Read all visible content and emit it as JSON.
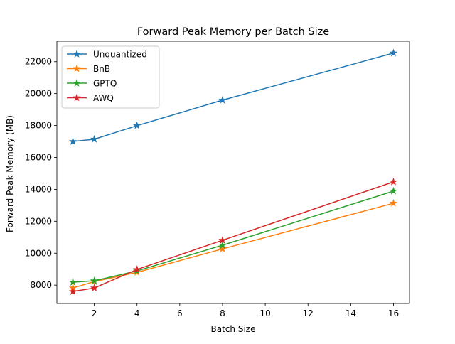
{
  "chart_data": {
    "type": "line",
    "title": "Forward Peak Memory per Batch Size",
    "xlabel": "Batch Size",
    "ylabel": "Forward Peak Memory (MB)",
    "x": [
      1,
      2,
      4,
      8,
      16
    ],
    "xlim": [
      0.25,
      16.75
    ],
    "ylim": [
      6850,
      23280
    ],
    "xticks": [
      2,
      4,
      6,
      8,
      10,
      12,
      14,
      16
    ],
    "yticks": [
      8000,
      10000,
      12000,
      14000,
      16000,
      18000,
      20000,
      22000
    ],
    "grid": false,
    "legend_position": "top-left",
    "marker": "star",
    "series": [
      {
        "name": "Unquantized",
        "color": "#1f77b4",
        "values": [
          17000,
          17140,
          17990,
          19590,
          22540
        ]
      },
      {
        "name": "BnB",
        "color": "#ff7f0e",
        "values": [
          7820,
          8220,
          8800,
          10270,
          13130
        ]
      },
      {
        "name": "GPTQ",
        "color": "#2ca02c",
        "values": [
          8180,
          8270,
          8890,
          10500,
          13890
        ]
      },
      {
        "name": "AWQ",
        "color": "#d62728",
        "values": [
          7600,
          7820,
          8980,
          10810,
          14470
        ]
      }
    ]
  }
}
